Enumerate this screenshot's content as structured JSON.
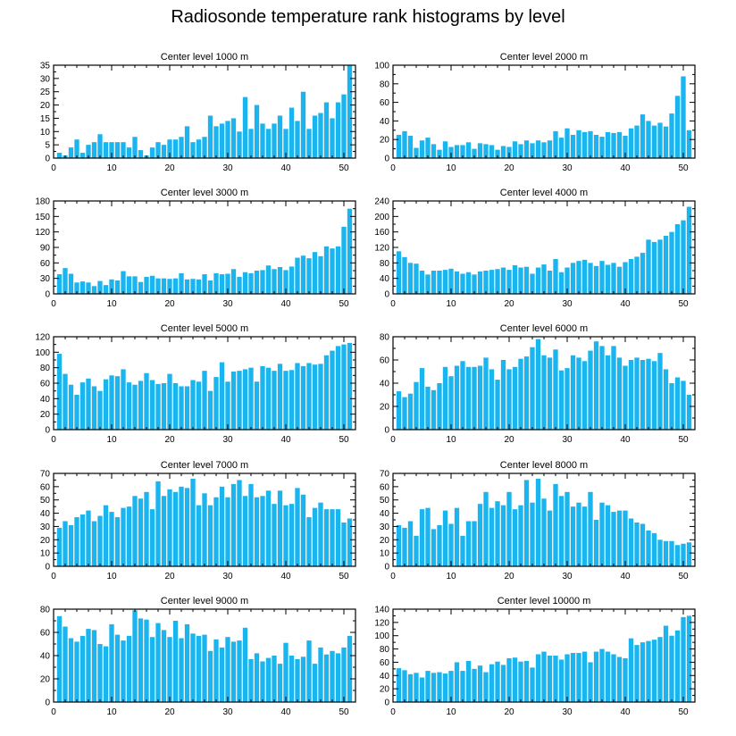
{
  "title": "Radiosonde temperature rank histograms by level",
  "bar_color": "#1ab4ef",
  "chart_data": [
    {
      "type": "bar",
      "title": "Center level 1000 m",
      "ylim": [
        0,
        35
      ],
      "yticks": [
        0,
        5,
        10,
        15,
        20,
        25,
        30,
        35
      ],
      "xlim": [
        0,
        52
      ],
      "xticks": [
        0,
        10,
        20,
        30,
        40,
        50
      ],
      "x": [
        1,
        2,
        3,
        4,
        5,
        6,
        7,
        8,
        9,
        10,
        11,
        12,
        13,
        14,
        15,
        16,
        17,
        18,
        19,
        20,
        21,
        22,
        23,
        24,
        25,
        26,
        27,
        28,
        29,
        30,
        31,
        32,
        33,
        34,
        35,
        36,
        37,
        38,
        39,
        40,
        41,
        42,
        43,
        44,
        45,
        46,
        47,
        48,
        49,
        50,
        51
      ],
      "values": [
        2,
        1,
        4,
        7,
        2,
        5,
        6,
        9,
        6,
        6,
        6,
        6,
        4,
        8,
        3,
        1,
        4,
        6,
        5,
        7,
        7,
        8,
        12,
        6,
        7,
        8,
        16,
        12,
        13,
        14,
        15,
        10,
        23,
        11,
        20,
        13,
        11,
        13,
        16,
        11,
        19,
        14,
        25,
        11,
        16,
        17,
        21,
        15,
        21,
        24,
        35
      ]
    },
    {
      "type": "bar",
      "title": "Center level 2000 m",
      "ylim": [
        0,
        100
      ],
      "yticks": [
        0,
        20,
        40,
        60,
        80,
        100
      ],
      "xlim": [
        0,
        52
      ],
      "xticks": [
        0,
        10,
        20,
        30,
        40,
        50
      ],
      "x": [
        1,
        2,
        3,
        4,
        5,
        6,
        7,
        8,
        9,
        10,
        11,
        12,
        13,
        14,
        15,
        16,
        17,
        18,
        19,
        20,
        21,
        22,
        23,
        24,
        25,
        26,
        27,
        28,
        29,
        30,
        31,
        32,
        33,
        34,
        35,
        36,
        37,
        38,
        39,
        40,
        41,
        42,
        43,
        44,
        45,
        46,
        47,
        48,
        49,
        50,
        51
      ],
      "values": [
        25,
        29,
        24,
        11,
        19,
        22,
        15,
        9,
        18,
        12,
        14,
        14,
        17,
        10,
        16,
        15,
        14,
        9,
        13,
        12,
        18,
        15,
        19,
        16,
        19,
        17,
        19,
        29,
        22,
        32,
        25,
        30,
        28,
        29,
        25,
        23,
        28,
        27,
        28,
        24,
        32,
        35,
        47,
        40,
        35,
        38,
        34,
        48,
        67,
        88,
        30
      ]
    },
    {
      "type": "bar",
      "title": "Center level 3000 m",
      "ylim": [
        0,
        180
      ],
      "yticks": [
        0,
        30,
        60,
        90,
        120,
        150,
        180
      ],
      "xlim": [
        0,
        52
      ],
      "xticks": [
        0,
        10,
        20,
        30,
        40,
        50
      ],
      "x": [
        1,
        2,
        3,
        4,
        5,
        6,
        7,
        8,
        9,
        10,
        11,
        12,
        13,
        14,
        15,
        16,
        17,
        18,
        19,
        20,
        21,
        22,
        23,
        24,
        25,
        26,
        27,
        28,
        29,
        30,
        31,
        32,
        33,
        34,
        35,
        36,
        37,
        38,
        39,
        40,
        41,
        42,
        43,
        44,
        45,
        46,
        47,
        48,
        49,
        50,
        51
      ],
      "values": [
        38,
        50,
        39,
        22,
        24,
        22,
        15,
        25,
        17,
        28,
        26,
        44,
        34,
        34,
        23,
        33,
        35,
        30,
        30,
        29,
        30,
        40,
        28,
        29,
        28,
        38,
        26,
        40,
        38,
        39,
        48,
        33,
        42,
        40,
        45,
        46,
        55,
        48,
        52,
        46,
        53,
        70,
        74,
        69,
        81,
        73,
        92,
        88,
        92,
        130,
        165
      ]
    },
    {
      "type": "bar",
      "title": "Center level 4000 m",
      "ylim": [
        0,
        240
      ],
      "yticks": [
        0,
        40,
        80,
        120,
        160,
        200,
        240
      ],
      "xlim": [
        0,
        52
      ],
      "xticks": [
        0,
        10,
        20,
        30,
        40,
        50
      ],
      "x": [
        1,
        2,
        3,
        4,
        5,
        6,
        7,
        8,
        9,
        10,
        11,
        12,
        13,
        14,
        15,
        16,
        17,
        18,
        19,
        20,
        21,
        22,
        23,
        24,
        25,
        26,
        27,
        28,
        29,
        30,
        31,
        32,
        33,
        34,
        35,
        36,
        37,
        38,
        39,
        40,
        41,
        42,
        43,
        44,
        45,
        46,
        47,
        48,
        49,
        50,
        51
      ],
      "values": [
        110,
        95,
        80,
        78,
        60,
        50,
        60,
        60,
        62,
        65,
        58,
        52,
        56,
        50,
        58,
        60,
        62,
        64,
        68,
        62,
        74,
        68,
        70,
        52,
        68,
        76,
        60,
        90,
        56,
        68,
        80,
        85,
        88,
        80,
        72,
        85,
        75,
        80,
        70,
        82,
        90,
        96,
        106,
        140,
        134,
        140,
        150,
        160,
        180,
        190,
        225
      ]
    },
    {
      "type": "bar",
      "title": "Center level 5000 m",
      "ylim": [
        0,
        120
      ],
      "yticks": [
        0,
        20,
        40,
        60,
        80,
        100,
        120
      ],
      "xlim": [
        0,
        52
      ],
      "xticks": [
        0,
        10,
        20,
        30,
        40,
        50
      ],
      "x": [
        1,
        2,
        3,
        4,
        5,
        6,
        7,
        8,
        9,
        10,
        11,
        12,
        13,
        14,
        15,
        16,
        17,
        18,
        19,
        20,
        21,
        22,
        23,
        24,
        25,
        26,
        27,
        28,
        29,
        30,
        31,
        32,
        33,
        34,
        35,
        36,
        37,
        38,
        39,
        40,
        41,
        42,
        43,
        44,
        45,
        46,
        47,
        48,
        49,
        50,
        51
      ],
      "values": [
        98,
        72,
        58,
        45,
        61,
        66,
        56,
        50,
        65,
        70,
        69,
        78,
        61,
        58,
        63,
        73,
        64,
        59,
        60,
        72,
        60,
        56,
        56,
        64,
        62,
        76,
        50,
        68,
        87,
        62,
        75,
        76,
        78,
        80,
        62,
        82,
        80,
        76,
        85,
        76,
        77,
        86,
        82,
        86,
        84,
        85,
        96,
        102,
        108,
        110,
        112
      ]
    },
    {
      "type": "bar",
      "title": "Center level 6000 m",
      "ylim": [
        0,
        80
      ],
      "yticks": [
        0,
        20,
        40,
        60,
        80
      ],
      "xlim": [
        0,
        52
      ],
      "xticks": [
        0,
        10,
        20,
        30,
        40,
        50
      ],
      "x": [
        1,
        2,
        3,
        4,
        5,
        6,
        7,
        8,
        9,
        10,
        11,
        12,
        13,
        14,
        15,
        16,
        17,
        18,
        19,
        20,
        21,
        22,
        23,
        24,
        25,
        26,
        27,
        28,
        29,
        30,
        31,
        32,
        33,
        34,
        35,
        36,
        37,
        38,
        39,
        40,
        41,
        42,
        43,
        44,
        45,
        46,
        47,
        48,
        49,
        50,
        51
      ],
      "values": [
        33,
        28,
        31,
        41,
        53,
        37,
        34,
        40,
        54,
        46,
        55,
        59,
        54,
        54,
        55,
        62,
        52,
        43,
        60,
        52,
        54,
        61,
        63,
        71,
        78,
        64,
        62,
        69,
        51,
        53,
        64,
        62,
        59,
        68,
        76,
        72,
        64,
        72,
        62,
        55,
        60,
        62,
        60,
        61,
        59,
        66,
        52,
        40,
        45,
        42,
        30
      ]
    },
    {
      "type": "bar",
      "title": "Center level 7000 m",
      "ylim": [
        0,
        70
      ],
      "yticks": [
        0,
        10,
        20,
        30,
        40,
        50,
        60,
        70
      ],
      "xlim": [
        0,
        52
      ],
      "xticks": [
        0,
        10,
        20,
        30,
        40,
        50
      ],
      "x": [
        1,
        2,
        3,
        4,
        5,
        6,
        7,
        8,
        9,
        10,
        11,
        12,
        13,
        14,
        15,
        16,
        17,
        18,
        19,
        20,
        21,
        22,
        23,
        24,
        25,
        26,
        27,
        28,
        29,
        30,
        31,
        32,
        33,
        34,
        35,
        36,
        37,
        38,
        39,
        40,
        41,
        42,
        43,
        44,
        45,
        46,
        47,
        48,
        49,
        50,
        51
      ],
      "values": [
        29,
        34,
        31,
        37,
        39,
        42,
        34,
        38,
        46,
        41,
        37,
        44,
        45,
        53,
        51,
        56,
        43,
        64,
        53,
        58,
        56,
        60,
        59,
        66,
        46,
        55,
        46,
        52,
        60,
        52,
        62,
        65,
        53,
        62,
        52,
        53,
        57,
        47,
        57,
        46,
        47,
        59,
        54,
        37,
        44,
        48,
        43,
        43,
        43,
        33,
        36
      ]
    },
    {
      "type": "bar",
      "title": "Center level 8000 m",
      "ylim": [
        0,
        70
      ],
      "yticks": [
        0,
        10,
        20,
        30,
        40,
        50,
        60,
        70
      ],
      "xlim": [
        0,
        52
      ],
      "xticks": [
        0,
        10,
        20,
        30,
        40,
        50
      ],
      "x": [
        1,
        2,
        3,
        4,
        5,
        6,
        7,
        8,
        9,
        10,
        11,
        12,
        13,
        14,
        15,
        16,
        17,
        18,
        19,
        20,
        21,
        22,
        23,
        24,
        25,
        26,
        27,
        28,
        29,
        30,
        31,
        32,
        33,
        34,
        35,
        36,
        37,
        38,
        39,
        40,
        41,
        42,
        43,
        44,
        45,
        46,
        47,
        48,
        49,
        50,
        51
      ],
      "values": [
        31,
        29,
        34,
        23,
        43,
        44,
        28,
        31,
        42,
        32,
        44,
        23,
        34,
        34,
        47,
        56,
        44,
        49,
        46,
        56,
        43,
        46,
        65,
        48,
        66,
        51,
        42,
        62,
        53,
        56,
        45,
        48,
        45,
        56,
        35,
        48,
        46,
        41,
        42,
        42,
        36,
        33,
        32,
        27,
        25,
        20,
        19,
        19,
        16,
        17,
        18
      ]
    },
    {
      "type": "bar",
      "title": "Center level 9000 m",
      "ylim": [
        0,
        80
      ],
      "yticks": [
        0,
        20,
        40,
        60,
        80
      ],
      "xlim": [
        0,
        52
      ],
      "xticks": [
        0,
        10,
        20,
        30,
        40,
        50
      ],
      "x": [
        1,
        2,
        3,
        4,
        5,
        6,
        7,
        8,
        9,
        10,
        11,
        12,
        13,
        14,
        15,
        16,
        17,
        18,
        19,
        20,
        21,
        22,
        23,
        24,
        25,
        26,
        27,
        28,
        29,
        30,
        31,
        32,
        33,
        34,
        35,
        36,
        37,
        38,
        39,
        40,
        41,
        42,
        43,
        44,
        45,
        46,
        47,
        48,
        49,
        50,
        51
      ],
      "values": [
        74,
        65,
        55,
        52,
        57,
        63,
        62,
        50,
        48,
        67,
        58,
        53,
        57,
        79,
        72,
        71,
        56,
        68,
        62,
        56,
        70,
        55,
        67,
        59,
        57,
        58,
        44,
        54,
        47,
        56,
        52,
        53,
        64,
        37,
        42,
        35,
        38,
        40,
        33,
        51,
        40,
        37,
        39,
        53,
        33,
        47,
        41,
        44,
        42,
        47,
        57
      ]
    },
    {
      "type": "bar",
      "title": "Center level 10000 m",
      "ylim": [
        0,
        140
      ],
      "yticks": [
        0,
        20,
        40,
        60,
        80,
        100,
        120,
        140
      ],
      "xlim": [
        0,
        52
      ],
      "xticks": [
        0,
        10,
        20,
        30,
        40,
        50
      ],
      "x": [
        1,
        2,
        3,
        4,
        5,
        6,
        7,
        8,
        9,
        10,
        11,
        12,
        13,
        14,
        15,
        16,
        17,
        18,
        19,
        20,
        21,
        22,
        23,
        24,
        25,
        26,
        27,
        28,
        29,
        30,
        31,
        32,
        33,
        34,
        35,
        36,
        37,
        38,
        39,
        40,
        41,
        42,
        43,
        44,
        45,
        46,
        47,
        48,
        49,
        50,
        51
      ],
      "values": [
        51,
        48,
        42,
        44,
        37,
        47,
        44,
        45,
        43,
        47,
        60,
        47,
        62,
        50,
        55,
        45,
        57,
        61,
        56,
        66,
        67,
        61,
        62,
        52,
        72,
        76,
        70,
        70,
        64,
        72,
        74,
        74,
        76,
        60,
        76,
        80,
        76,
        72,
        68,
        66,
        96,
        86,
        90,
        92,
        94,
        98,
        115,
        100,
        108,
        128,
        130
      ]
    }
  ]
}
